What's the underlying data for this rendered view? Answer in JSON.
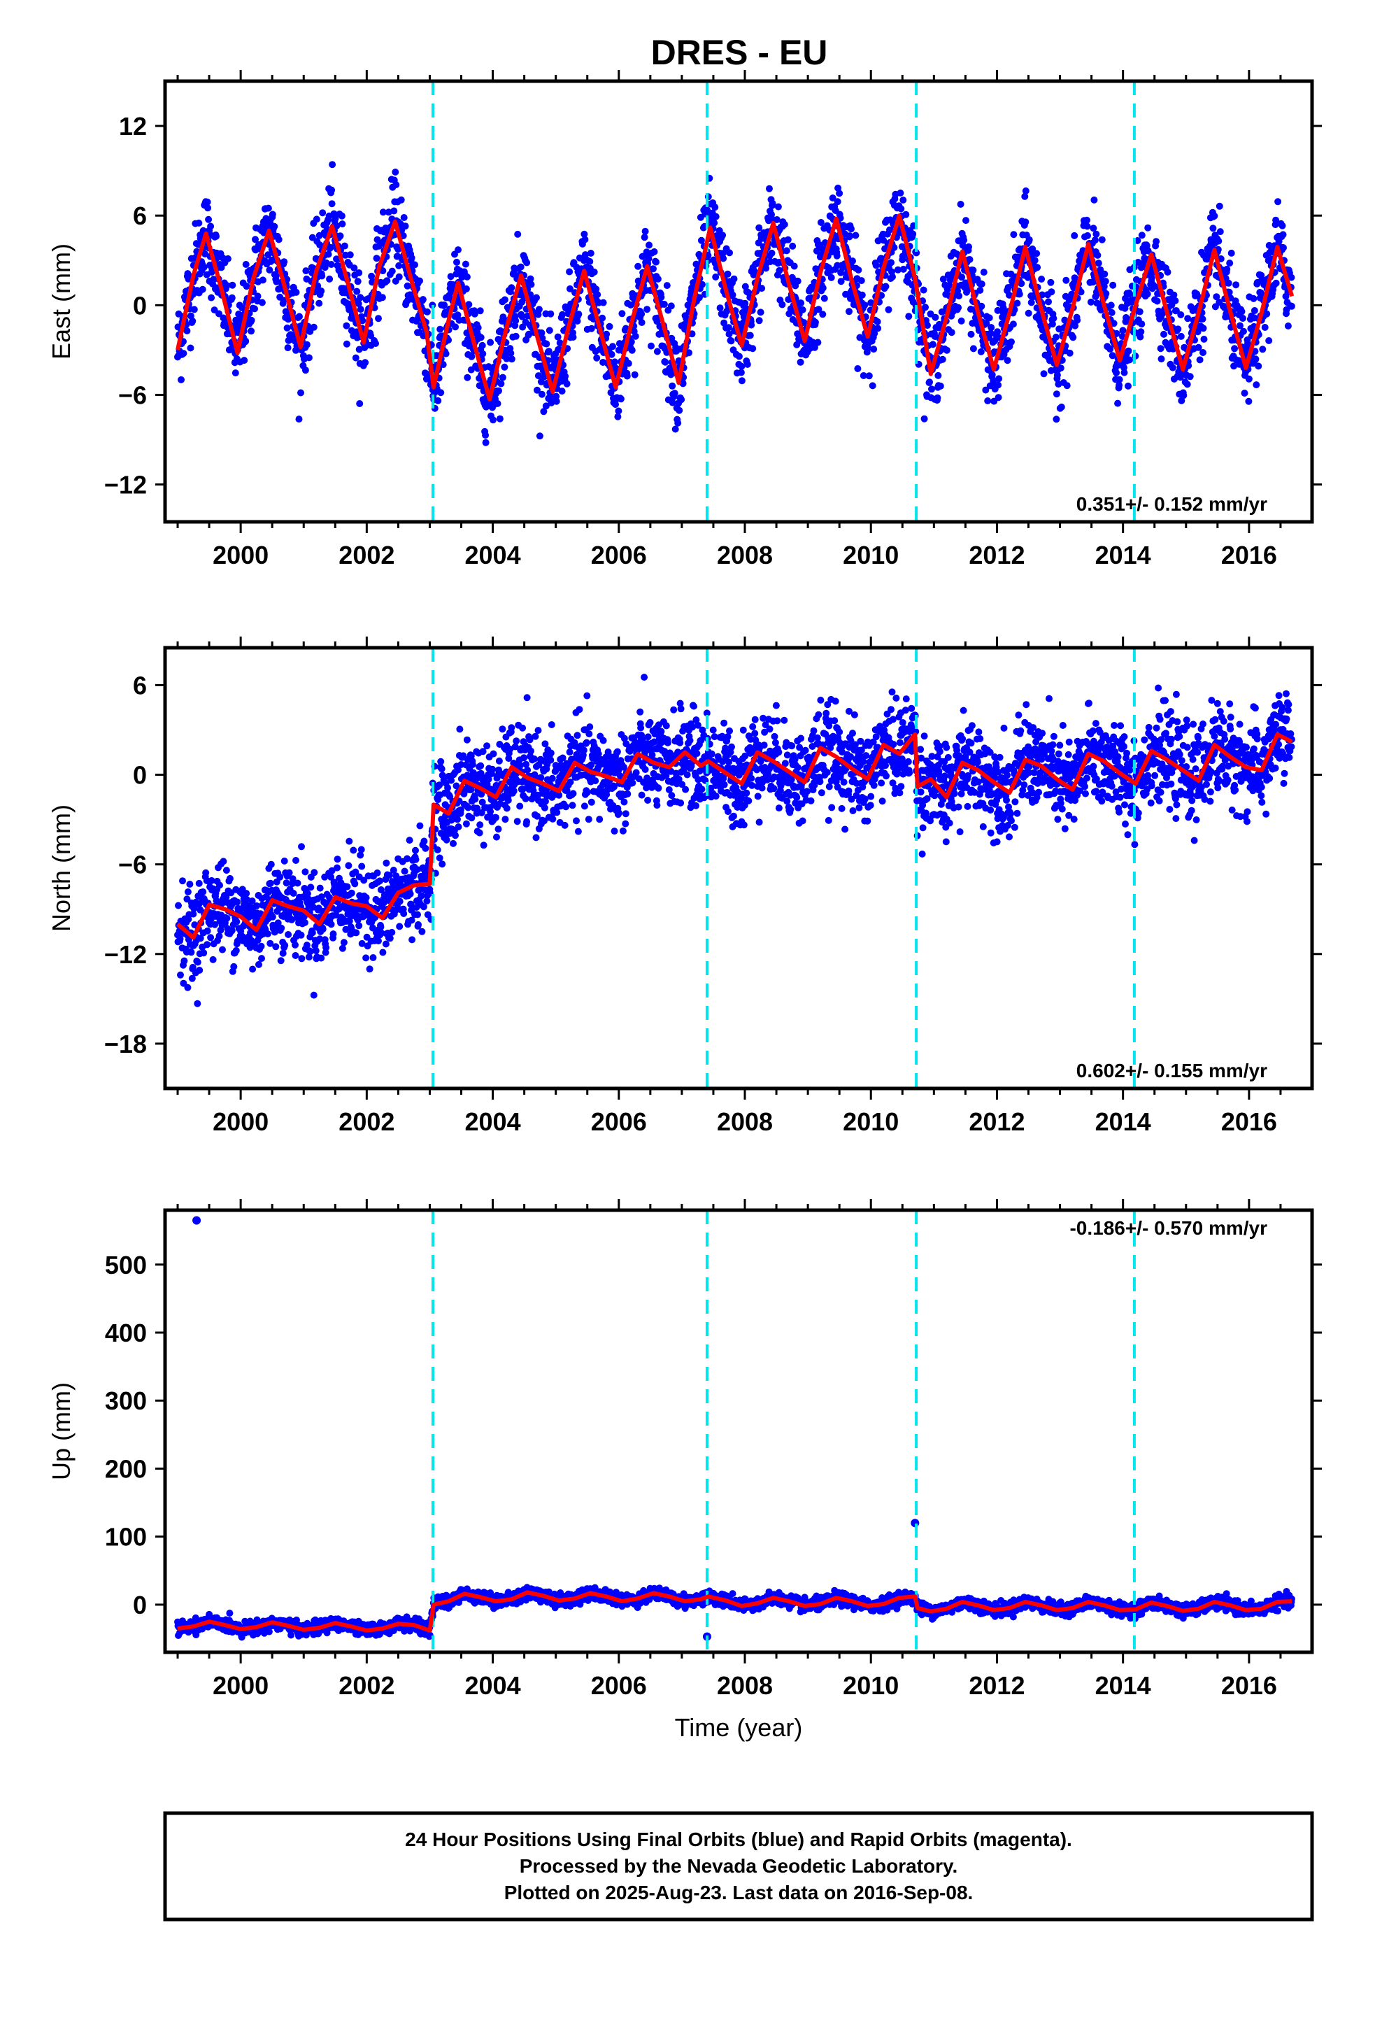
{
  "title": "DRES - EU",
  "xlabel": "Time (year)",
  "footer": {
    "lines": [
      "24 Hour Positions Using Final Orbits (blue) and Rapid Orbits (magenta).",
      "Processed by the Nevada Geodetic Laboratory.",
      "Plotted on 2025-Aug-23. Last data on 2016-Sep-08."
    ]
  },
  "colors": {
    "points": "#0000ff",
    "model": "#ff0000",
    "breaks": "#00e5ee",
    "frame": "#000000"
  },
  "chart_data": [
    {
      "type": "scatter",
      "ylabel": "East (mm)",
      "xlim": [
        1998.8,
        2017.0
      ],
      "ylim": [
        -14.5,
        15
      ],
      "yticks": [
        -12,
        -6,
        0,
        6,
        12
      ],
      "xticks": [
        2000,
        2002,
        2004,
        2006,
        2008,
        2010,
        2012,
        2014,
        2016
      ],
      "rate_label": "0.351+/- 0.152 mm/yr",
      "rate_position": "bottom-right",
      "breaks": [
        2003.05,
        2007.4,
        2010.72,
        2014.18
      ],
      "series": [
        {
          "x": [
            1999.0,
            1999.25,
            1999.45,
            1999.7,
            1999.95,
            2000.2,
            2000.45,
            2000.7,
            2000.95,
            2001.2,
            2001.45,
            2001.7,
            2001.95,
            2002.2,
            2002.45,
            2002.7,
            2002.95,
            2003.06,
            2003.3,
            2003.45,
            2003.7,
            2003.95,
            2004.2,
            2004.45,
            2004.7,
            2004.95,
            2005.2,
            2005.45,
            2005.7,
            2005.95,
            2006.2,
            2006.45,
            2006.7,
            2006.95,
            2007.2,
            2007.45,
            2007.7,
            2007.95,
            2008.2,
            2008.45,
            2008.7,
            2008.95,
            2009.2,
            2009.45,
            2009.7,
            2009.95,
            2010.2,
            2010.45,
            2010.7,
            2010.95,
            2011.2,
            2011.45,
            2011.7,
            2011.95,
            2012.2,
            2012.45,
            2012.7,
            2012.95,
            2013.2,
            2013.45,
            2013.7,
            2013.95,
            2014.2,
            2014.45,
            2014.7,
            2014.95,
            2015.2,
            2015.45,
            2015.7,
            2015.95,
            2016.2,
            2016.45,
            2016.68
          ],
          "y": [
            -3.0,
            2.0,
            4.8,
            1.0,
            -3.2,
            1.8,
            5.0,
            1.2,
            -2.8,
            2.3,
            5.3,
            1.5,
            -2.5,
            2.6,
            5.6,
            1.8,
            -1.8,
            -5.5,
            -1.0,
            1.5,
            -2.5,
            -6.3,
            -1.8,
            2.0,
            -2.0,
            -5.8,
            -1.5,
            2.3,
            -1.6,
            -5.5,
            -1.2,
            2.6,
            -1.2,
            -5.2,
            0.5,
            5.2,
            1.0,
            -2.7,
            1.8,
            5.5,
            1.4,
            -2.4,
            2.2,
            5.8,
            1.6,
            -2.1,
            2.5,
            6.0,
            1.8,
            -4.6,
            -0.8,
            3.6,
            -0.5,
            -4.3,
            -0.5,
            3.9,
            -0.2,
            -4.0,
            -0.2,
            4.1,
            0.0,
            -3.7,
            0.0,
            3.4,
            -0.5,
            -4.3,
            -0.5,
            3.7,
            -0.4,
            -4.2,
            -0.5,
            3.9,
            0.6
          ]
        }
      ]
    },
    {
      "type": "scatter",
      "ylabel": "North (mm)",
      "xlim": [
        1998.8,
        2017.0
      ],
      "ylim": [
        -21,
        8.5
      ],
      "yticks": [
        -18,
        -12,
        -6,
        0,
        6
      ],
      "xticks": [
        2000,
        2002,
        2004,
        2006,
        2008,
        2010,
        2012,
        2014,
        2016
      ],
      "rate_label": "0.602+/- 0.155 mm/yr",
      "rate_position": "bottom-right",
      "breaks": [
        2003.05,
        2007.4,
        2010.72,
        2014.18
      ],
      "series": [
        {
          "x": [
            1999.0,
            1999.25,
            1999.5,
            1999.75,
            2000.0,
            2000.25,
            2000.5,
            2000.75,
            2001.0,
            2001.25,
            2001.5,
            2001.75,
            2002.0,
            2002.25,
            2002.5,
            2002.75,
            2003.0,
            2003.06,
            2003.3,
            2003.55,
            2003.8,
            2004.05,
            2004.3,
            2004.55,
            2004.8,
            2005.05,
            2005.3,
            2005.55,
            2005.8,
            2006.05,
            2006.3,
            2006.55,
            2006.8,
            2007.05,
            2007.3,
            2007.42,
            2007.7,
            2007.95,
            2008.2,
            2008.45,
            2008.7,
            2008.95,
            2009.2,
            2009.45,
            2009.7,
            2009.95,
            2010.2,
            2010.45,
            2010.7,
            2010.74,
            2010.95,
            2011.2,
            2011.45,
            2011.7,
            2011.95,
            2012.2,
            2012.45,
            2012.7,
            2012.95,
            2013.2,
            2013.45,
            2013.7,
            2013.95,
            2014.2,
            2014.45,
            2014.7,
            2014.95,
            2015.2,
            2015.45,
            2015.7,
            2015.95,
            2016.2,
            2016.45,
            2016.68
          ],
          "y": [
            -10.0,
            -10.9,
            -8.7,
            -9.0,
            -9.5,
            -10.4,
            -8.4,
            -8.8,
            -9.1,
            -10.0,
            -8.2,
            -8.6,
            -8.8,
            -9.6,
            -7.9,
            -7.4,
            -7.3,
            -2.0,
            -2.6,
            -0.4,
            -0.9,
            -1.5,
            0.5,
            -0.2,
            -0.6,
            -1.1,
            0.8,
            0.2,
            -0.1,
            -0.5,
            1.4,
            0.8,
            0.5,
            1.5,
            0.6,
            0.9,
            0.1,
            -0.6,
            1.5,
            0.9,
            0.2,
            -0.5,
            1.8,
            1.2,
            0.4,
            -0.3,
            2.0,
            1.4,
            2.7,
            -0.8,
            -0.3,
            -1.5,
            0.8,
            0.3,
            -0.5,
            -1.2,
            1.0,
            0.6,
            -0.3,
            -1.0,
            1.4,
            0.9,
            0.1,
            -0.6,
            1.6,
            1.0,
            0.3,
            -0.4,
            2.0,
            1.2,
            0.5,
            0.3,
            2.7,
            2.2
          ]
        }
      ]
    },
    {
      "type": "scatter",
      "ylabel": "Up (mm)",
      "xlim": [
        1998.8,
        2017.0
      ],
      "ylim": [
        -70,
        580
      ],
      "yticks": [
        0,
        100,
        200,
        300,
        400,
        500
      ],
      "xticks": [
        2000,
        2002,
        2004,
        2006,
        2008,
        2010,
        2012,
        2014,
        2016
      ],
      "rate_label": "-0.186+/- 0.570 mm/yr",
      "rate_position": "top-right",
      "breaks": [
        2003.05,
        2007.4,
        2010.72,
        2014.18
      ],
      "outliers": [
        {
          "x": 1999.3,
          "y": 565
        },
        {
          "x": 2010.7,
          "y": 120
        },
        {
          "x": 2007.4,
          "y": -47
        }
      ],
      "series": [
        {
          "x": [
            1999.0,
            1999.25,
            1999.5,
            1999.75,
            2000.0,
            2000.25,
            2000.5,
            2000.75,
            2001.0,
            2001.25,
            2001.5,
            2001.75,
            2002.0,
            2002.25,
            2002.5,
            2002.75,
            2003.0,
            2003.06,
            2003.3,
            2003.55,
            2003.8,
            2004.05,
            2004.3,
            2004.55,
            2004.8,
            2005.05,
            2005.3,
            2005.55,
            2005.8,
            2006.05,
            2006.3,
            2006.55,
            2006.8,
            2007.05,
            2007.3,
            2007.42,
            2007.7,
            2007.95,
            2008.2,
            2008.45,
            2008.7,
            2008.95,
            2009.2,
            2009.45,
            2009.7,
            2009.95,
            2010.2,
            2010.45,
            2010.7,
            2010.74,
            2010.95,
            2011.2,
            2011.45,
            2011.7,
            2011.95,
            2012.2,
            2012.45,
            2012.7,
            2012.95,
            2013.2,
            2013.45,
            2013.7,
            2013.95,
            2014.2,
            2014.45,
            2014.7,
            2014.95,
            2015.2,
            2015.45,
            2015.7,
            2015.95,
            2016.2,
            2016.45,
            2016.68
          ],
          "y": [
            -35,
            -32,
            -25,
            -30,
            -36,
            -33,
            -26,
            -31,
            -37,
            -34,
            -27,
            -32,
            -38,
            -35,
            -28,
            -30,
            -38,
            0,
            5,
            16,
            11,
            5,
            8,
            18,
            13,
            6,
            9,
            17,
            12,
            5,
            9,
            17,
            12,
            5,
            8,
            12,
            6,
            -2,
            2,
            10,
            5,
            -2,
            1,
            10,
            5,
            -2,
            1,
            10,
            12,
            -5,
            -10,
            -6,
            4,
            -1,
            -8,
            -5,
            4,
            -1,
            -8,
            -5,
            4,
            -1,
            -8,
            -7,
            3,
            -2,
            -9,
            -6,
            4,
            -1,
            -8,
            -6,
            4,
            5
          ]
        }
      ]
    }
  ]
}
